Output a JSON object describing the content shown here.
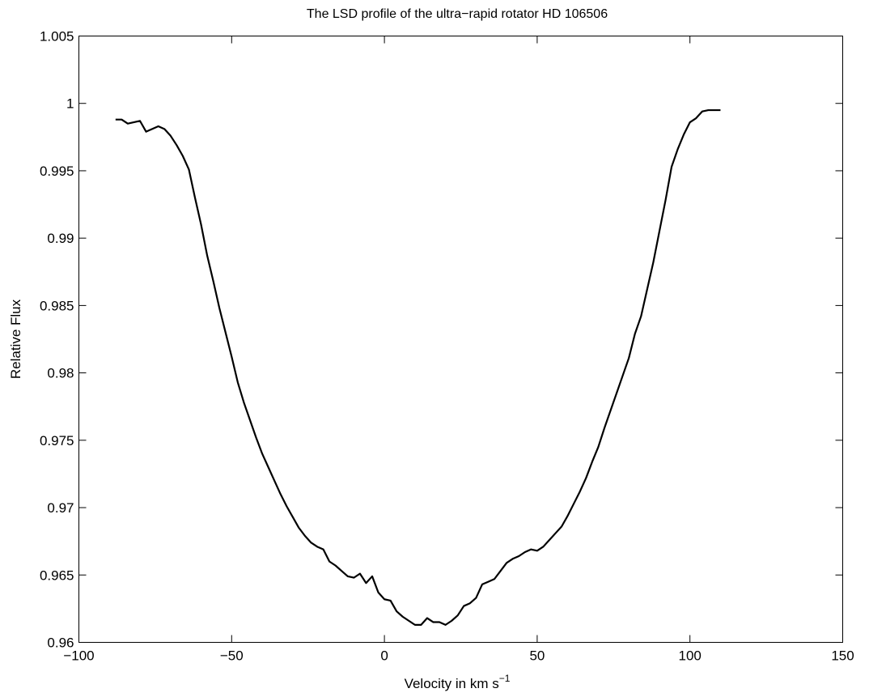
{
  "chart_data": {
    "type": "line",
    "title": "The LSD profile of the ultra−rapid rotator HD 106506",
    "xlabel_main": "Velocity in km s",
    "xlabel_sup": "−1",
    "ylabel": "Relative Flux",
    "xlim": [
      -100,
      150
    ],
    "ylim": [
      0.96,
      1.005
    ],
    "grid": false,
    "x_ticks": [
      {
        "value": -100,
        "label": "−100"
      },
      {
        "value": -50,
        "label": "−50"
      },
      {
        "value": 0,
        "label": "0"
      },
      {
        "value": 50,
        "label": "50"
      },
      {
        "value": 100,
        "label": "100"
      },
      {
        "value": 150,
        "label": "150"
      }
    ],
    "y_ticks": [
      {
        "value": 0.96,
        "label": "0.96"
      },
      {
        "value": 0.965,
        "label": "0.965"
      },
      {
        "value": 0.97,
        "label": "0.97"
      },
      {
        "value": 0.975,
        "label": "0.975"
      },
      {
        "value": 0.98,
        "label": "0.98"
      },
      {
        "value": 0.985,
        "label": "0.985"
      },
      {
        "value": 0.99,
        "label": "0.99"
      },
      {
        "value": 0.995,
        "label": "0.995"
      },
      {
        "value": 1.0,
        "label": "1"
      },
      {
        "value": 1.005,
        "label": "1.005"
      }
    ],
    "series": [
      {
        "color": "#000000",
        "x": [
          -88,
          -86,
          -84,
          -80,
          -78,
          -74,
          -72,
          -70,
          -68,
          -66,
          -64,
          -62,
          -60,
          -58,
          -56,
          -54,
          -52,
          -50,
          -48,
          -46,
          -44,
          -42,
          -40,
          -38,
          -36,
          -34,
          -32,
          -30,
          -28,
          -26,
          -24,
          -22,
          -20,
          -18,
          -16,
          -14,
          -12,
          -10,
          -8,
          -6,
          -4,
          -2,
          0,
          2,
          4,
          6,
          8,
          10,
          12,
          14,
          16,
          18,
          20,
          22,
          24,
          26,
          28,
          30,
          32,
          34,
          36,
          38,
          40,
          42,
          44,
          46,
          48,
          50,
          52,
          54,
          56,
          58,
          60,
          62,
          64,
          66,
          68,
          70,
          72,
          74,
          76,
          78,
          80,
          82,
          84,
          86,
          88,
          90,
          92,
          94,
          96,
          98,
          100,
          102,
          104,
          106,
          110
        ],
        "y": [
          0.9988,
          0.9988,
          0.9985,
          0.9987,
          0.9979,
          0.9983,
          0.9981,
          0.9976,
          0.9969,
          0.9961,
          0.9951,
          0.993,
          0.991,
          0.9887,
          0.9868,
          0.9848,
          0.983,
          0.9812,
          0.9793,
          0.9778,
          0.9765,
          0.9752,
          0.974,
          0.973,
          0.972,
          0.971,
          0.9701,
          0.9693,
          0.9685,
          0.9679,
          0.9674,
          0.9671,
          0.9669,
          0.966,
          0.9657,
          0.9653,
          0.9649,
          0.9648,
          0.9651,
          0.9644,
          0.9649,
          0.9637,
          0.9632,
          0.9631,
          0.9623,
          0.9619,
          0.9616,
          0.9613,
          0.9613,
          0.9618,
          0.9615,
          0.9615,
          0.9613,
          0.9616,
          0.962,
          0.9627,
          0.9629,
          0.9633,
          0.9643,
          0.9645,
          0.9647,
          0.9653,
          0.9659,
          0.9662,
          0.9664,
          0.9667,
          0.9669,
          0.9668,
          0.9671,
          0.9676,
          0.9681,
          0.9686,
          0.9694,
          0.9703,
          0.9712,
          0.9722,
          0.9734,
          0.9745,
          0.9759,
          0.9772,
          0.9785,
          0.9798,
          0.9811,
          0.9829,
          0.9842,
          0.9862,
          0.9882,
          0.9905,
          0.9928,
          0.9953,
          0.9966,
          0.9977,
          0.9986,
          0.9989,
          0.9994,
          0.9995,
          0.9995
        ]
      }
    ]
  }
}
